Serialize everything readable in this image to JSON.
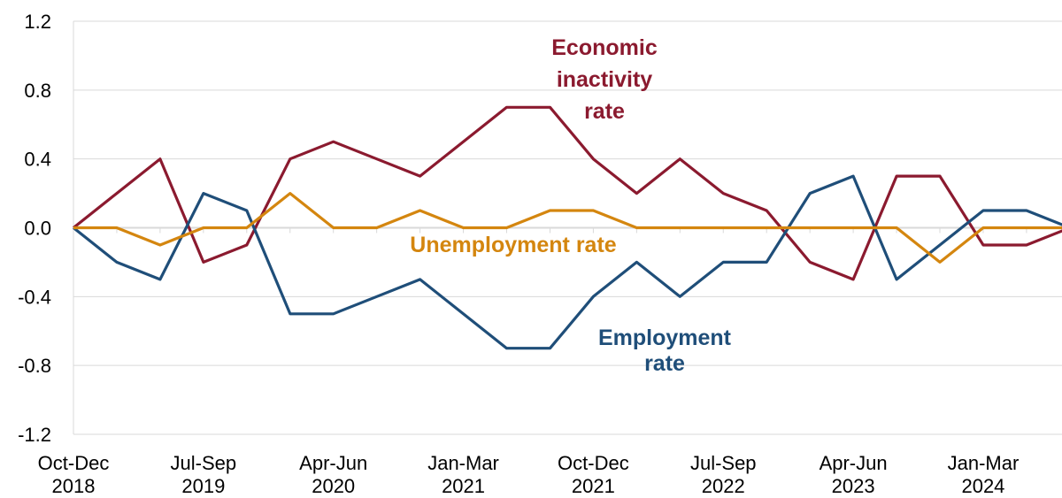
{
  "chart_data": {
    "type": "line",
    "title": "",
    "xlabel": "",
    "ylabel": "",
    "ylim": [
      -1.2,
      1.2
    ],
    "yticks": [
      "1.2",
      "0.8",
      "0.4",
      "0.0",
      "-0.4",
      "-0.8",
      "-1.2"
    ],
    "ytick_values": [
      1.2,
      0.8,
      0.4,
      0.0,
      -0.4,
      -0.8,
      -1.2
    ],
    "grid": true,
    "legend": "none (series labeled directly on chart)",
    "x_tick_labels": [
      {
        "index": 0,
        "line1": "Oct-Dec",
        "line2": "2018"
      },
      {
        "index": 3,
        "line1": "Jul-Sep",
        "line2": "2019"
      },
      {
        "index": 6,
        "line1": "Apr-Jun",
        "line2": "2020"
      },
      {
        "index": 9,
        "line1": "Jan-Mar",
        "line2": "2021"
      },
      {
        "index": 12,
        "line1": "Oct-Dec",
        "line2": "2021"
      },
      {
        "index": 15,
        "line1": "Jul-Sep",
        "line2": "2022"
      },
      {
        "index": 18,
        "line1": "Apr-Jun",
        "line2": "2023"
      },
      {
        "index": 21,
        "line1": "Jan-Mar",
        "line2": "2024"
      }
    ],
    "series": [
      {
        "name": "Economic inactivity rate",
        "label_lines": [
          "Economic",
          "inactivity",
          "rate"
        ],
        "color": "#8B1A2F",
        "values": [
          0.0,
          0.2,
          0.4,
          -0.2,
          -0.1,
          0.4,
          0.5,
          0.4,
          0.3,
          0.5,
          0.7,
          0.7,
          0.4,
          0.2,
          0.4,
          0.2,
          0.1,
          -0.2,
          -0.3,
          0.3,
          0.3,
          -0.1,
          -0.1,
          0.0
        ]
      },
      {
        "name": "Employment rate",
        "label_lines": [
          "Employment",
          "rate"
        ],
        "color": "#1F4E79",
        "values": [
          0.0,
          -0.2,
          -0.3,
          0.2,
          0.1,
          -0.5,
          -0.5,
          -0.4,
          -0.3,
          -0.5,
          -0.7,
          -0.7,
          -0.4,
          -0.2,
          -0.4,
          -0.2,
          -0.2,
          0.2,
          0.3,
          -0.3,
          -0.1,
          0.1,
          0.1,
          0.0
        ]
      },
      {
        "name": "Unemployment rate",
        "label_lines": [
          "Unemployment  rate"
        ],
        "color": "#D4860F",
        "values": [
          0.0,
          0.0,
          -0.1,
          0.0,
          0.0,
          0.2,
          0.0,
          0.0,
          0.1,
          0.0,
          0.0,
          0.1,
          0.1,
          0.0,
          0.0,
          0.0,
          0.0,
          0.0,
          0.0,
          0.0,
          -0.2,
          0.0,
          0.0,
          0.0
        ]
      }
    ]
  }
}
